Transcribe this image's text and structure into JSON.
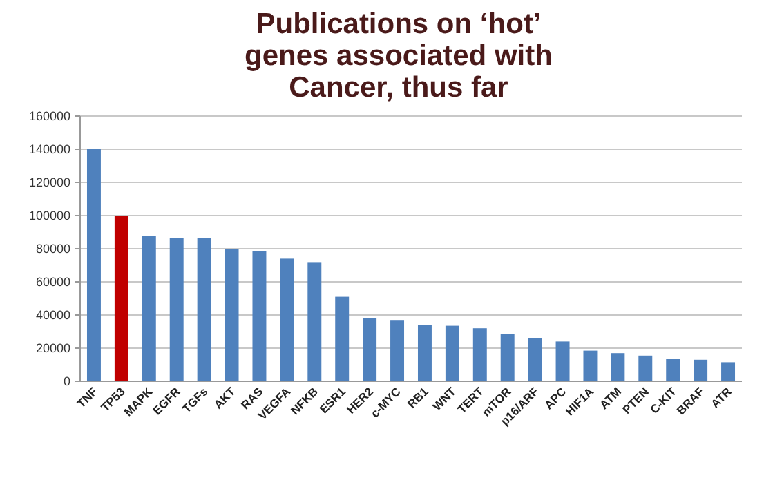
{
  "chart_data": {
    "type": "bar",
    "title": "Publications on ‘hot’ genes associated with Cancer, thus far",
    "categories": [
      "TNF",
      "TP53",
      "MAPK",
      "EGFR",
      "TGFs",
      "AKT",
      "RAS",
      "VEGFA",
      "NFKB",
      "ESR1",
      "HER2",
      "c-MYC",
      "RB1",
      "WNT",
      "TERT",
      "mTOR",
      "p16/ARF",
      "APC",
      "HIF1A",
      "ATM",
      "PTEN",
      "C-KIT",
      "BRAF",
      "ATR"
    ],
    "values": [
      140000,
      100000,
      87500,
      86500,
      86500,
      80000,
      78500,
      74000,
      71500,
      51000,
      38000,
      37000,
      34000,
      33500,
      32000,
      28500,
      26000,
      24000,
      18500,
      17000,
      15500,
      13500,
      13000,
      11500
    ],
    "colors": [
      "#4f81bd",
      "#c00000",
      "#4f81bd",
      "#4f81bd",
      "#4f81bd",
      "#4f81bd",
      "#4f81bd",
      "#4f81bd",
      "#4f81bd",
      "#4f81bd",
      "#4f81bd",
      "#4f81bd",
      "#4f81bd",
      "#4f81bd",
      "#4f81bd",
      "#4f81bd",
      "#4f81bd",
      "#4f81bd",
      "#4f81bd",
      "#4f81bd",
      "#4f81bd",
      "#4f81bd",
      "#4f81bd",
      "#4f81bd"
    ],
    "ylim": [
      0,
      160000
    ],
    "yticks": [
      0,
      20000,
      40000,
      60000,
      80000,
      100000,
      120000,
      140000,
      160000
    ],
    "grid": "y"
  }
}
